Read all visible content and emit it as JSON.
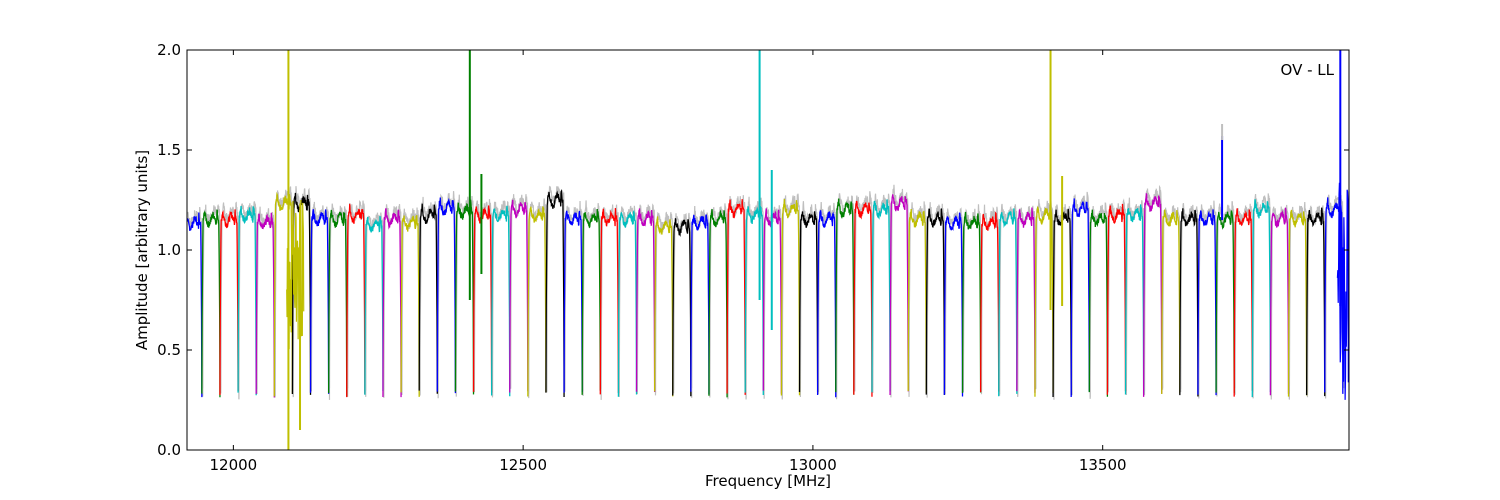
{
  "chart_data": {
    "type": "line",
    "title": "",
    "annotation": "OV - LL",
    "xlabel": "Frequency [MHz]",
    "ylabel": "Amplitude [arbitrary units]",
    "xlim": [
      11920,
      13925
    ],
    "ylim": [
      0.0,
      2.0
    ],
    "xticks": [
      12000,
      12500,
      13000,
      13500
    ],
    "xtick_labels": [
      "12000",
      "12500",
      "13000",
      "13500"
    ],
    "yticks": [
      0.0,
      0.5,
      1.0,
      1.5,
      2.0
    ],
    "ytick_labels": [
      "0.0",
      "0.5",
      "1.0",
      "1.5",
      "2.0"
    ],
    "grid": false,
    "legend": "none",
    "background_trace_color": "#bfbfbf",
    "color_cycle": [
      "#0000ff",
      "#008000",
      "#ff0000",
      "#00bfbf",
      "#bf00bf",
      "#bfbf00",
      "#000000"
    ],
    "channel_spacing_mhz": 31.25,
    "first_channel_center_mhz": 11930,
    "channel_count": 64,
    "channel_profile": {
      "passband_level": 1.2,
      "band_edge_minimum": 0.28
    },
    "channel_levels": [
      1.18,
      1.2,
      1.2,
      1.22,
      1.18,
      1.28,
      1.28,
      1.2,
      1.2,
      1.22,
      1.17,
      1.2,
      1.18,
      1.22,
      1.26,
      1.24,
      1.22,
      1.22,
      1.25,
      1.22,
      1.3,
      1.2,
      1.2,
      1.2,
      1.2,
      1.2,
      1.16,
      1.16,
      1.18,
      1.2,
      1.25,
      1.22,
      1.2,
      1.25,
      1.2,
      1.2,
      1.25,
      1.25,
      1.25,
      1.28,
      1.2,
      1.2,
      1.18,
      1.18,
      1.18,
      1.2,
      1.2,
      1.22,
      1.2,
      1.25,
      1.2,
      1.22,
      1.22,
      1.28,
      1.2,
      1.2,
      1.2,
      1.2,
      1.2,
      1.25,
      1.2,
      1.2,
      1.2,
      1.25
    ],
    "spikes": [
      {
        "x": 12095,
        "ymin": 0.0,
        "ymax": 2.0,
        "color": "#bfbf00"
      },
      {
        "x": 12115,
        "ymin": 0.1,
        "ymax": 1.2,
        "color": "#bfbf00"
      },
      {
        "x": 12408,
        "ymin": 0.75,
        "ymax": 2.0,
        "color": "#008000"
      },
      {
        "x": 12428,
        "ymin": 0.88,
        "ymax": 1.38,
        "color": "#008000"
      },
      {
        "x": 12908,
        "ymin": 0.75,
        "ymax": 2.0,
        "color": "#00bfbf"
      },
      {
        "x": 12929,
        "ymin": 0.6,
        "ymax": 1.4,
        "color": "#00bfbf"
      },
      {
        "x": 13410,
        "ymin": 0.7,
        "ymax": 2.0,
        "color": "#bfbf00"
      },
      {
        "x": 13430,
        "ymin": 0.72,
        "ymax": 1.37,
        "color": "#bfbf00"
      },
      {
        "x": 13706,
        "ymin": 1.15,
        "ymax": 1.57,
        "color": "#0000ff"
      },
      {
        "x": 13706,
        "ymin": 1.55,
        "ymax": 1.63,
        "color": "#bfbfbf"
      },
      {
        "x": 13910,
        "ymin": 0.72,
        "ymax": 2.0,
        "color": "#0000ff"
      }
    ]
  }
}
